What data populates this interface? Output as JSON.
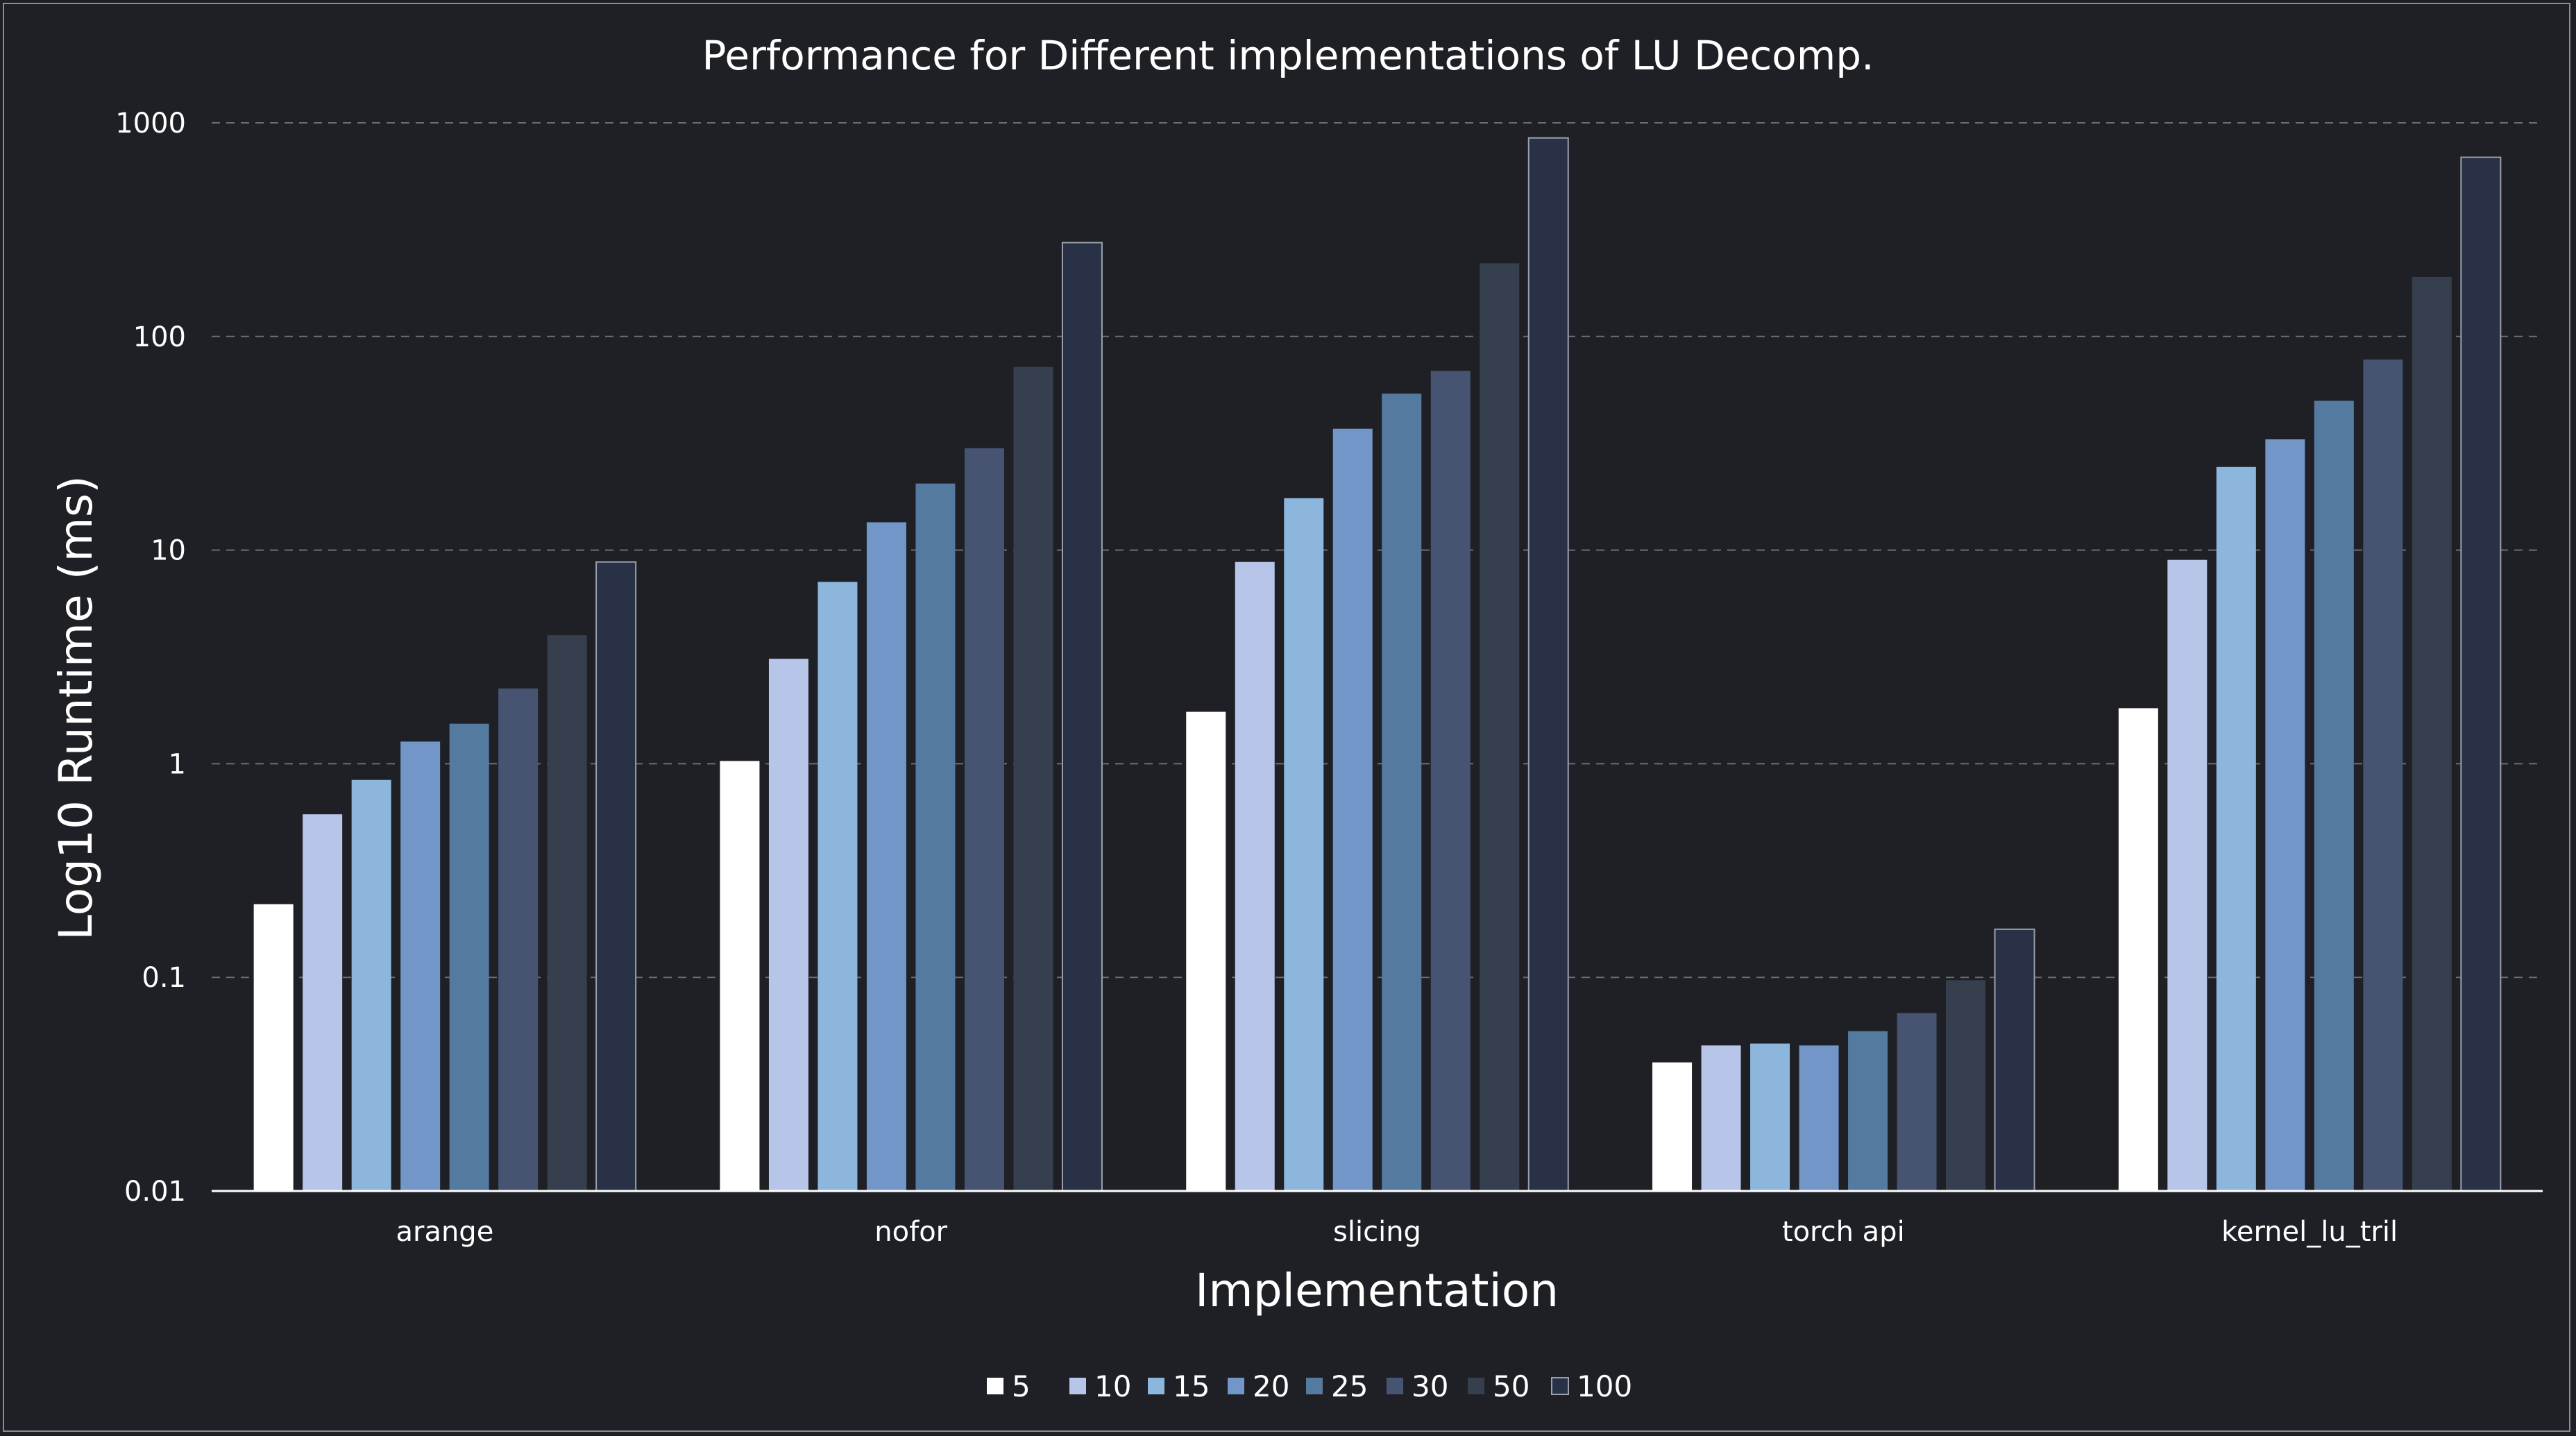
{
  "chart_data": {
    "type": "bar",
    "title": "Performance for Different implementations of LU Decomp.",
    "xlabel": "Implementation",
    "ylabel": "Log10 Runtime (ms)",
    "yscale": "log",
    "ylim": [
      0.01,
      1000
    ],
    "yticks": [
      0.01,
      0.1,
      1,
      10,
      100,
      1000
    ],
    "ytick_labels": [
      "0.01",
      "0.1",
      "1",
      "10",
      "100",
      "1000"
    ],
    "grid": "horizontal dashed",
    "legend_position": "bottom-center",
    "categories": [
      "arange",
      "nofor",
      "slicing",
      "torch api",
      "kernel_lu_tril"
    ],
    "series": [
      {
        "name": "5",
        "color": "#ffffff",
        "values": [
          0.22,
          1.03,
          1.75,
          0.04,
          1.82
        ]
      },
      {
        "name": "10",
        "color": "#b7c6e8",
        "values": [
          0.58,
          3.1,
          8.8,
          0.048,
          9.0
        ]
      },
      {
        "name": "15",
        "color": "#8cb6dc",
        "values": [
          0.84,
          7.1,
          17.5,
          0.049,
          24.5
        ]
      },
      {
        "name": "20",
        "color": "#7196c7",
        "values": [
          1.27,
          13.5,
          37,
          0.048,
          33
        ]
      },
      {
        "name": "25",
        "color": "#557a9f",
        "values": [
          1.54,
          20.5,
          54,
          0.056,
          50
        ]
      },
      {
        "name": "30",
        "color": "#465472",
        "values": [
          2.25,
          30,
          69,
          0.068,
          78
        ]
      },
      {
        "name": "50",
        "color": "#363f4e",
        "values": [
          4.0,
          72,
          220,
          0.097,
          190
        ]
      },
      {
        "name": "100",
        "color": "#283145",
        "values": [
          8.8,
          275,
          850,
          0.168,
          690
        ]
      }
    ]
  }
}
